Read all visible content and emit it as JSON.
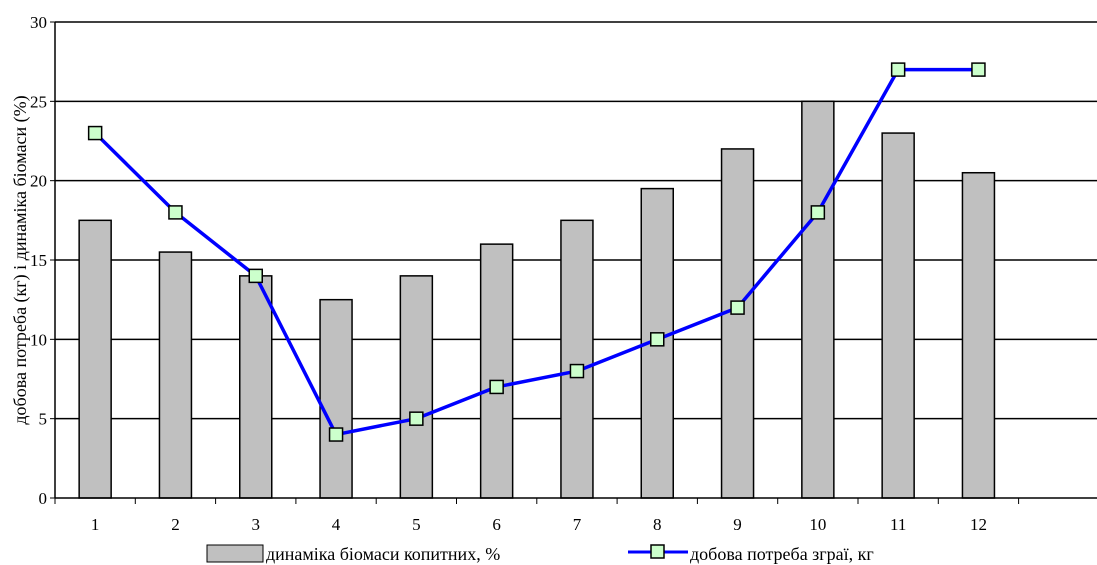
{
  "chart_data": {
    "type": "bar",
    "categories": [
      "1",
      "2",
      "3",
      "4",
      "5",
      "6",
      "7",
      "8",
      "9",
      "10",
      "11",
      "12"
    ],
    "series": [
      {
        "name": "динаміка біомаси копитних, %",
        "kind": "bar",
        "color": "#c0c0c0",
        "values": [
          17.5,
          15.5,
          14,
          12.5,
          14,
          16,
          17.5,
          19.5,
          22,
          25,
          23,
          20.5
        ]
      },
      {
        "name": "добова потреба зграї, кг",
        "kind": "line",
        "color": "#0000ff",
        "marker_color": "#ccffcc",
        "values": [
          23,
          18,
          14,
          4,
          5,
          7,
          8,
          10,
          12,
          18,
          27,
          27
        ]
      }
    ],
    "title": "",
    "xlabel": "",
    "ylabel": "добова потреба (кг) і динаміка біомаси (%)",
    "ylim": [
      0,
      30
    ],
    "yticks": [
      "0",
      "5",
      "10",
      "15",
      "20",
      "25",
      "30"
    ],
    "grid": true,
    "legend": "bottom"
  }
}
